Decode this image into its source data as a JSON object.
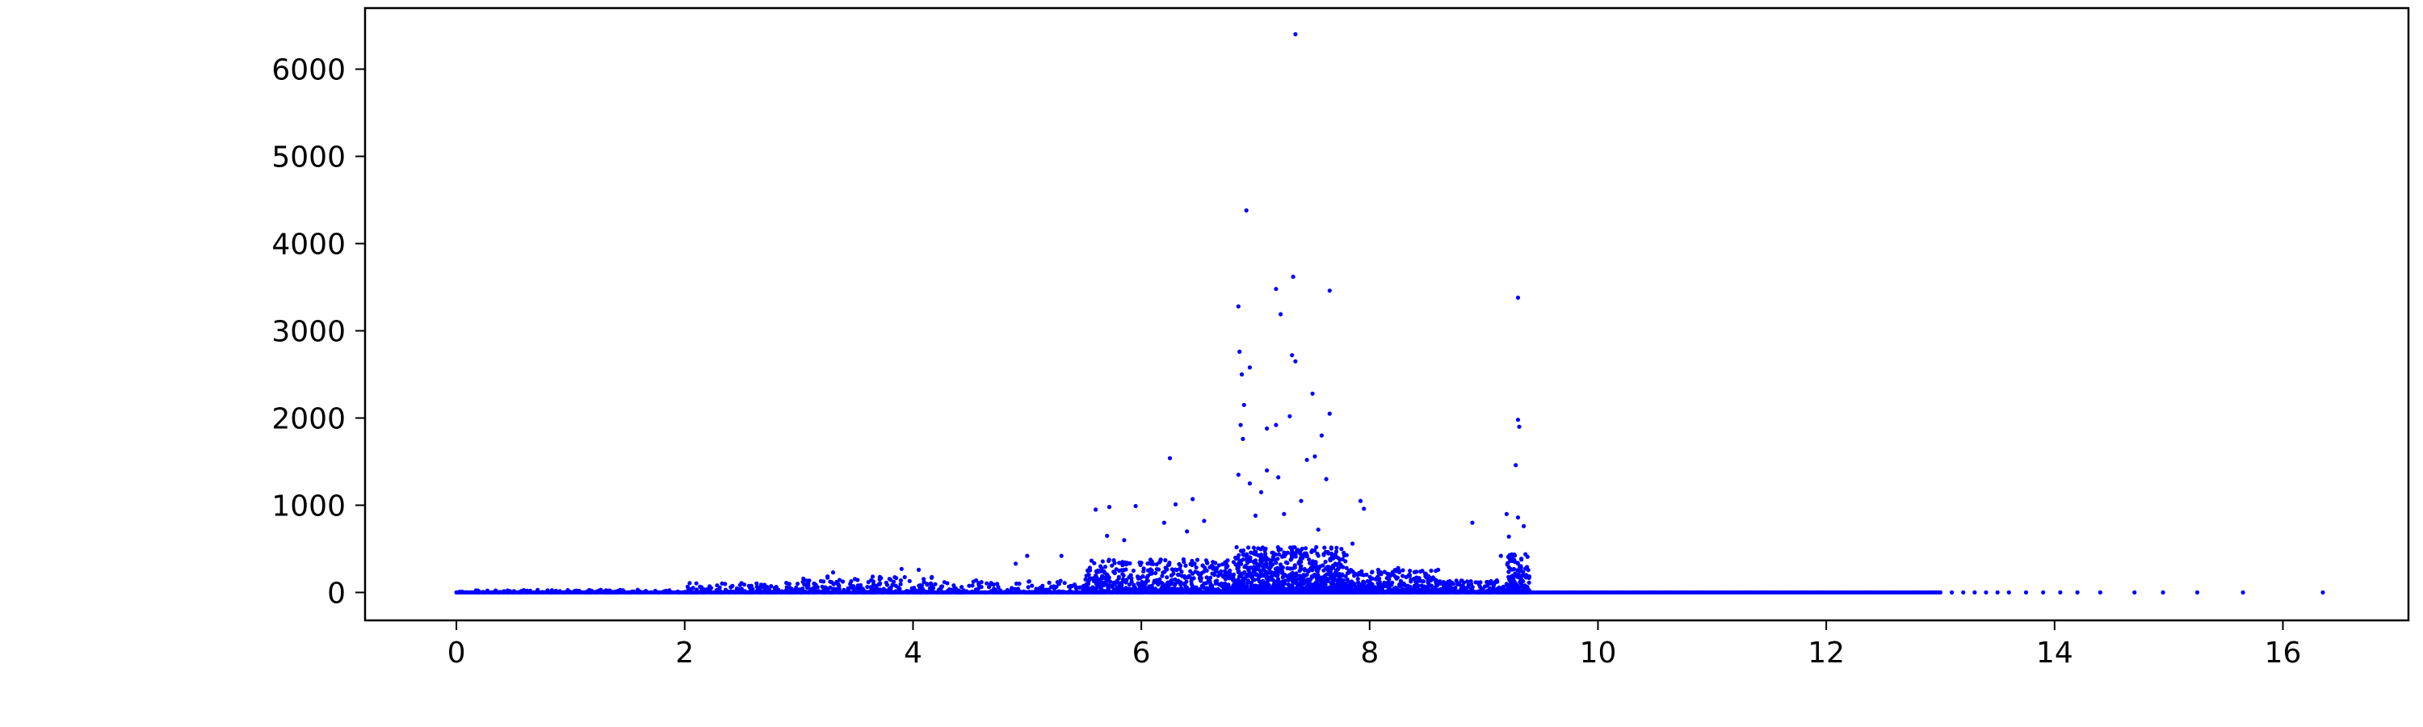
{
  "chart_data": {
    "type": "scatter",
    "title": "",
    "xlabel": "",
    "ylabel": "",
    "xlim": [
      -0.8,
      17.1
    ],
    "ylim": [
      -320,
      6700
    ],
    "x_ticks": [
      0,
      2,
      4,
      6,
      8,
      10,
      12,
      14,
      16
    ],
    "y_ticks": [
      0,
      1000,
      2000,
      3000,
      4000,
      5000,
      6000
    ],
    "grid": false,
    "legend": "none",
    "marker_color": "#0000ff",
    "baseline": {
      "x_start": 0.0,
      "x_end": 13.0,
      "y": 0
    },
    "tail_points": [
      [
        13.1,
        0
      ],
      [
        13.2,
        0
      ],
      [
        13.3,
        0
      ],
      [
        13.4,
        0
      ],
      [
        13.5,
        0
      ],
      [
        13.6,
        0
      ],
      [
        13.75,
        0
      ],
      [
        13.9,
        0
      ],
      [
        14.05,
        0
      ],
      [
        14.2,
        0
      ],
      [
        14.4,
        0
      ],
      [
        14.7,
        0
      ],
      [
        14.95,
        0
      ],
      [
        15.25,
        0
      ],
      [
        15.65,
        0
      ],
      [
        16.35,
        0
      ]
    ],
    "outliers": [
      [
        7.35,
        6400
      ],
      [
        6.92,
        4380
      ],
      [
        7.33,
        3620
      ],
      [
        7.18,
        3480
      ],
      [
        7.65,
        3460
      ],
      [
        9.3,
        3380
      ],
      [
        6.85,
        3280
      ],
      [
        7.22,
        3190
      ],
      [
        6.86,
        2760
      ],
      [
        7.32,
        2720
      ],
      [
        7.35,
        2650
      ],
      [
        6.95,
        2580
      ],
      [
        6.88,
        2500
      ],
      [
        7.5,
        2280
      ],
      [
        6.9,
        2150
      ],
      [
        7.65,
        2050
      ],
      [
        7.3,
        2020
      ],
      [
        9.3,
        1980
      ],
      [
        9.31,
        1900
      ],
      [
        7.18,
        1920
      ],
      [
        6.87,
        1920
      ],
      [
        7.1,
        1880
      ],
      [
        7.58,
        1800
      ],
      [
        6.89,
        1760
      ],
      [
        7.52,
        1560
      ],
      [
        7.45,
        1520
      ],
      [
        6.25,
        1540
      ],
      [
        9.28,
        1460
      ],
      [
        7.62,
        1300
      ],
      [
        6.85,
        1350
      ],
      [
        7.1,
        1400
      ],
      [
        7.2,
        1320
      ],
      [
        6.95,
        1250
      ],
      [
        7.05,
        1150
      ],
      [
        7.4,
        1050
      ],
      [
        6.45,
        1070
      ],
      [
        7.92,
        1050
      ],
      [
        7.95,
        960
      ],
      [
        5.72,
        980
      ],
      [
        5.95,
        990
      ],
      [
        6.3,
        1010
      ],
      [
        9.2,
        900
      ],
      [
        8.9,
        800
      ],
      [
        9.3,
        860
      ],
      [
        9.35,
        760
      ],
      [
        5.6,
        950
      ],
      [
        6.55,
        820
      ],
      [
        7.0,
        880
      ],
      [
        7.25,
        900
      ],
      [
        7.55,
        720
      ],
      [
        6.2,
        800
      ],
      [
        6.4,
        700
      ],
      [
        5.85,
        600
      ],
      [
        5.7,
        650
      ],
      [
        7.85,
        560
      ],
      [
        8.25,
        280
      ],
      [
        5.3,
        420
      ],
      [
        5.0,
        420
      ],
      [
        4.9,
        330
      ],
      [
        3.9,
        270
      ],
      [
        4.05,
        260
      ],
      [
        3.3,
        230
      ],
      [
        8.6,
        260
      ],
      [
        9.15,
        420
      ],
      [
        9.22,
        640
      ]
    ],
    "clusters": [
      {
        "x_min": 0.0,
        "x_max": 2.0,
        "y_max": 30,
        "count": 140
      },
      {
        "x_min": 2.0,
        "x_max": 3.0,
        "y_max": 110,
        "count": 160
      },
      {
        "x_min": 3.0,
        "x_max": 4.2,
        "y_max": 200,
        "count": 260
      },
      {
        "x_min": 4.2,
        "x_max": 5.5,
        "y_max": 140,
        "count": 200
      },
      {
        "x_min": 5.5,
        "x_max": 6.8,
        "y_max": 380,
        "count": 650
      },
      {
        "x_min": 6.8,
        "x_max": 7.8,
        "y_max": 520,
        "count": 1100
      },
      {
        "x_min": 7.8,
        "x_max": 8.6,
        "y_max": 260,
        "count": 420
      },
      {
        "x_min": 8.6,
        "x_max": 9.2,
        "y_max": 140,
        "count": 180
      },
      {
        "x_min": 9.2,
        "x_max": 9.4,
        "y_max": 450,
        "count": 200
      }
    ]
  }
}
